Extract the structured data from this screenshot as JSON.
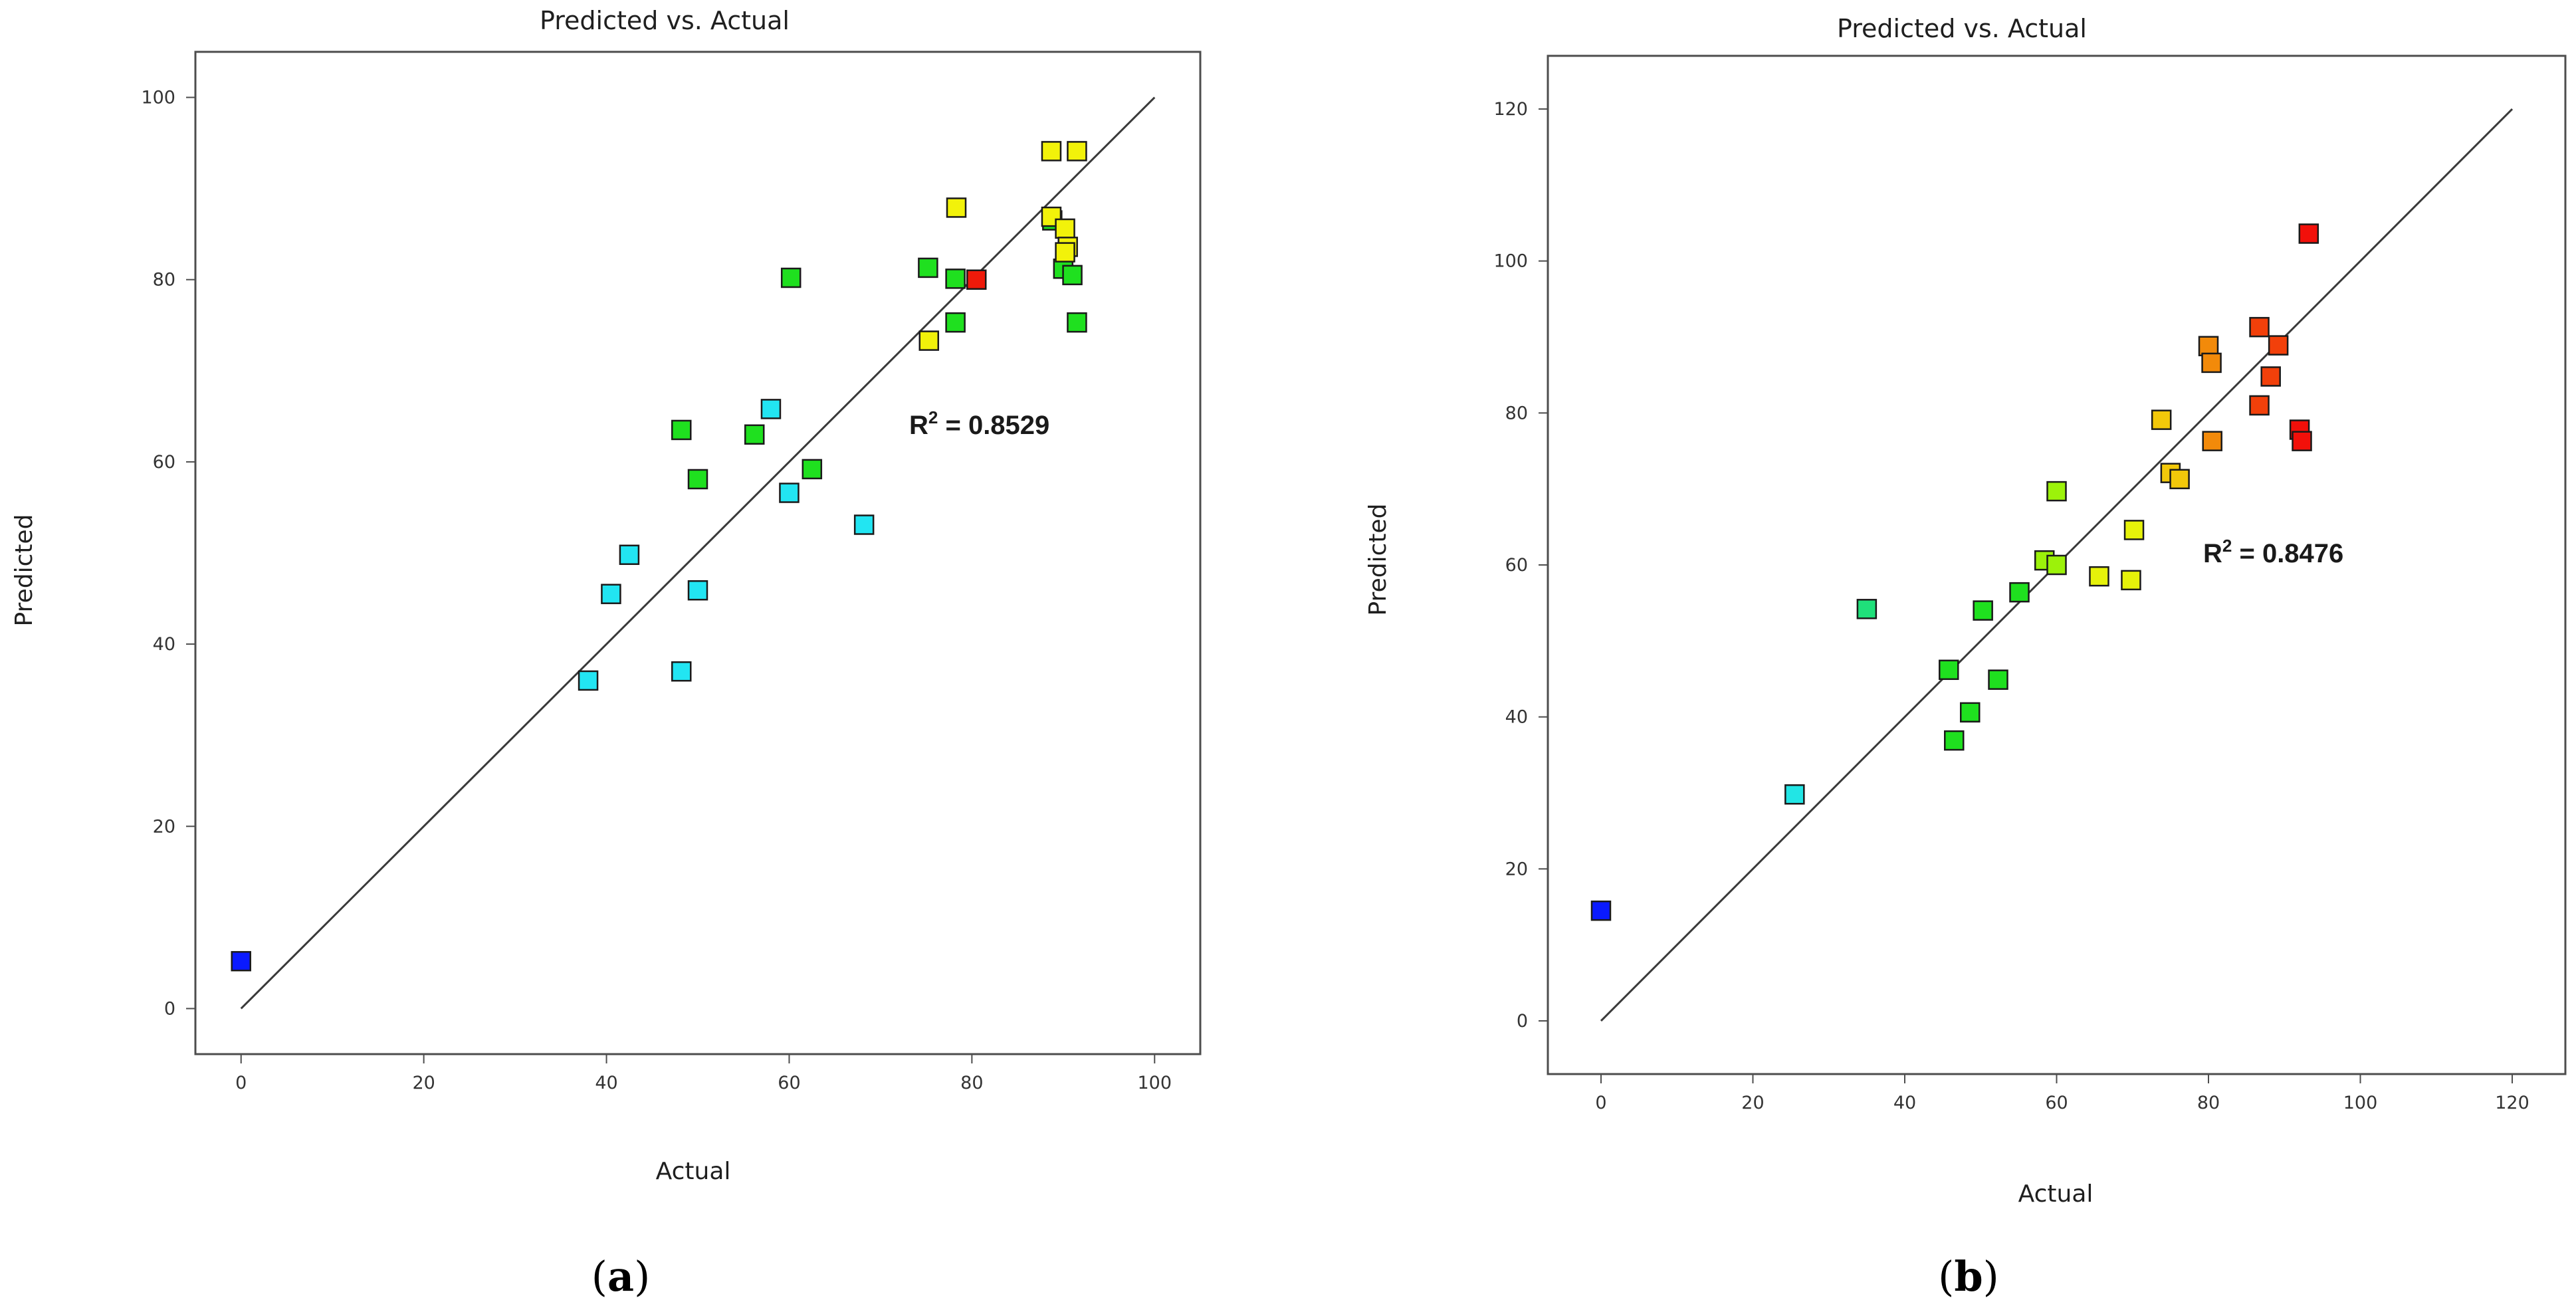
{
  "chart_data": [
    {
      "type": "scatter",
      "panel_label": "a",
      "title": "Predicted vs. Actual",
      "xlabel": "Actual",
      "ylabel": "Predicted",
      "xlim": [
        -5,
        105
      ],
      "ylim": [
        -5,
        105
      ],
      "xticks": [
        0,
        20,
        40,
        60,
        80,
        100
      ],
      "yticks": [
        0,
        20,
        40,
        60,
        80,
        100
      ],
      "annotation": {
        "r2_prefix": "R",
        "r2_sup": "2",
        "r2_value": " = 0.8529"
      },
      "diagonal": [
        0,
        100
      ],
      "points": [
        {
          "x": 0,
          "y": 5.2,
          "color": "#0a1aff"
        },
        {
          "x": 38,
          "y": 36,
          "color": "#22e5f2"
        },
        {
          "x": 40.5,
          "y": 45.5,
          "color": "#22e5f2"
        },
        {
          "x": 42.5,
          "y": 49.8,
          "color": "#22e5f2"
        },
        {
          "x": 48.2,
          "y": 37,
          "color": "#22e5f2"
        },
        {
          "x": 50,
          "y": 45.9,
          "color": "#22e5f2"
        },
        {
          "x": 58,
          "y": 65.8,
          "color": "#22e5f2"
        },
        {
          "x": 60,
          "y": 56.6,
          "color": "#22e5f2"
        },
        {
          "x": 68.2,
          "y": 53.1,
          "color": "#22e5f2"
        },
        {
          "x": 48.2,
          "y": 63.5,
          "color": "#1fe01f"
        },
        {
          "x": 50,
          "y": 58.1,
          "color": "#1fe01f"
        },
        {
          "x": 56.2,
          "y": 63,
          "color": "#1fe01f"
        },
        {
          "x": 60.2,
          "y": 80.2,
          "color": "#1fe01f"
        },
        {
          "x": 62.5,
          "y": 59.2,
          "color": "#1fe01f"
        },
        {
          "x": 75.2,
          "y": 81.3,
          "color": "#1fe01f"
        },
        {
          "x": 78.2,
          "y": 80.1,
          "color": "#1fe01f"
        },
        {
          "x": 78.2,
          "y": 75.3,
          "color": "#1fe01f"
        },
        {
          "x": 88.8,
          "y": 86.5,
          "color": "#1fe01f"
        },
        {
          "x": 90,
          "y": 81.2,
          "color": "#1fe01f"
        },
        {
          "x": 91,
          "y": 80.5,
          "color": "#1fe01f"
        },
        {
          "x": 91.5,
          "y": 75.3,
          "color": "#1fe01f"
        },
        {
          "x": 75.3,
          "y": 73.3,
          "color": "#f2f20a"
        },
        {
          "x": 78.3,
          "y": 87.9,
          "color": "#f2f20a"
        },
        {
          "x": 88.7,
          "y": 94.1,
          "color": "#f2f20a"
        },
        {
          "x": 91.5,
          "y": 94.1,
          "color": "#f2f20a"
        },
        {
          "x": 88.7,
          "y": 86.9,
          "color": "#f2f20a"
        },
        {
          "x": 90.2,
          "y": 85.6,
          "color": "#f2f20a"
        },
        {
          "x": 90.5,
          "y": 83.6,
          "color": "#f2f20a"
        },
        {
          "x": 90.2,
          "y": 83,
          "color": "#f2f20a"
        },
        {
          "x": 80.5,
          "y": 80,
          "color": "#ef1a0a"
        }
      ]
    },
    {
      "type": "scatter",
      "panel_label": "b",
      "title": "Predicted vs. Actual",
      "xlabel": "Actual",
      "ylabel": "Predicted",
      "xlim": [
        -7,
        127
      ],
      "ylim": [
        -7,
        127
      ],
      "xticks": [
        0,
        20,
        40,
        60,
        80,
        100,
        120
      ],
      "yticks": [
        0,
        20,
        40,
        60,
        80,
        100,
        120
      ],
      "annotation": {
        "r2_prefix": "R",
        "r2_sup": "2",
        "r2_value": " = 0.8476"
      },
      "diagonal": [
        0,
        120
      ],
      "points": [
        {
          "x": 0,
          "y": 14.5,
          "color": "#0a1aff"
        },
        {
          "x": 25.5,
          "y": 29.8,
          "color": "#22e5e5"
        },
        {
          "x": 35,
          "y": 54.2,
          "color": "#1fe07a"
        },
        {
          "x": 45.8,
          "y": 46.2,
          "color": "#1fe01f"
        },
        {
          "x": 46.5,
          "y": 36.9,
          "color": "#1fe01f"
        },
        {
          "x": 48.6,
          "y": 40.6,
          "color": "#1fe01f"
        },
        {
          "x": 50.3,
          "y": 54,
          "color": "#1fe01f"
        },
        {
          "x": 52.3,
          "y": 44.9,
          "color": "#1fe01f"
        },
        {
          "x": 55.1,
          "y": 56.4,
          "color": "#1fe01f"
        },
        {
          "x": 58.4,
          "y": 60.6,
          "color": "#9cf20a"
        },
        {
          "x": 60,
          "y": 69.7,
          "color": "#9cf20a"
        },
        {
          "x": 60,
          "y": 60,
          "color": "#9cf20a"
        },
        {
          "x": 65.6,
          "y": 58.5,
          "color": "#e6f20a"
        },
        {
          "x": 69.8,
          "y": 58,
          "color": "#e6f20a"
        },
        {
          "x": 70.2,
          "y": 64.6,
          "color": "#e6f20a"
        },
        {
          "x": 73.8,
          "y": 79.1,
          "color": "#f2c80a"
        },
        {
          "x": 75,
          "y": 72.1,
          "color": "#f2c80a"
        },
        {
          "x": 76.2,
          "y": 71.3,
          "color": "#f2c80a"
        },
        {
          "x": 80,
          "y": 88.8,
          "color": "#f28a0a"
        },
        {
          "x": 80.4,
          "y": 86.6,
          "color": "#f28a0a"
        },
        {
          "x": 80.5,
          "y": 76.3,
          "color": "#f28a0a"
        },
        {
          "x": 86.7,
          "y": 91.3,
          "color": "#f2400a"
        },
        {
          "x": 86.7,
          "y": 81,
          "color": "#f2400a"
        },
        {
          "x": 88.2,
          "y": 84.8,
          "color": "#f2400a"
        },
        {
          "x": 89.2,
          "y": 88.9,
          "color": "#f2400a"
        },
        {
          "x": 92,
          "y": 77.8,
          "color": "#f2100a"
        },
        {
          "x": 92.3,
          "y": 76.3,
          "color": "#f2100a"
        },
        {
          "x": 93.2,
          "y": 103.6,
          "color": "#f2100a"
        }
      ]
    }
  ]
}
